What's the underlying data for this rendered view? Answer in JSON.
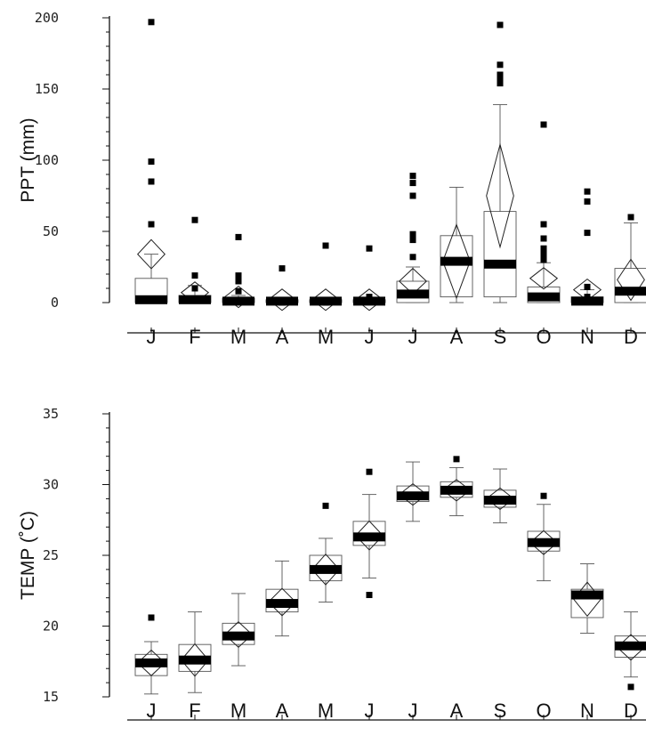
{
  "chart_data": [
    {
      "type": "box",
      "ylabel": "PPT (mm)",
      "ylim": [
        0,
        200
      ],
      "yticks": [
        0,
        50,
        100,
        150,
        200
      ],
      "categories": [
        "J",
        "F",
        "M",
        "A",
        "M",
        "J",
        "J",
        "A",
        "S",
        "O",
        "N",
        "D"
      ],
      "grid": false,
      "boxes": [
        {
          "q1": 0,
          "median": 2,
          "q3": 17,
          "lo": 0,
          "hi": 34,
          "mean": 34,
          "outliers": [
            197,
            99,
            85,
            55
          ]
        },
        {
          "q1": 0,
          "median": 2,
          "q3": 5,
          "lo": 0,
          "hi": 12,
          "mean": 7,
          "outliers": [
            58,
            19,
            10
          ]
        },
        {
          "q1": 0,
          "median": 1,
          "q3": 3,
          "lo": 0,
          "hi": 5,
          "mean": 4,
          "outliers": [
            46,
            19,
            15,
            8
          ]
        },
        {
          "q1": 0,
          "median": 1,
          "q3": 2,
          "lo": 0,
          "hi": 2,
          "mean": 2,
          "outliers": [
            24,
            0
          ]
        },
        {
          "q1": 0,
          "median": 1,
          "q3": 2,
          "lo": 0,
          "hi": 3,
          "mean": 2,
          "outliers": [
            40,
            0
          ]
        },
        {
          "q1": 0,
          "median": 1,
          "q3": 2,
          "lo": 0,
          "hi": 3,
          "mean": 2,
          "outliers": [
            38,
            4
          ]
        },
        {
          "q1": 0,
          "median": 6,
          "q3": 15,
          "lo": 0,
          "hi": 25,
          "mean": 15,
          "outliers": [
            89,
            84,
            75,
            48,
            44,
            32
          ]
        },
        {
          "q1": 4,
          "median": 29,
          "q3": 47,
          "lo": 0,
          "hi": 81,
          "mean": 29,
          "outliers": []
        },
        {
          "q1": 4,
          "median": 27,
          "q3": 64,
          "lo": 0,
          "hi": 139,
          "mean": 75,
          "outliers": [
            195,
            167,
            160,
            157,
            154
          ]
        },
        {
          "q1": 0,
          "median": 4,
          "q3": 11,
          "lo": 0,
          "hi": 28,
          "mean": 17,
          "outliers": [
            125,
            55,
            45,
            38,
            34,
            30
          ]
        },
        {
          "q1": 0,
          "median": 1,
          "q3": 4,
          "lo": 0,
          "hi": 9,
          "mean": 9,
          "outliers": [
            78,
            71,
            49,
            11,
            4
          ]
        },
        {
          "q1": 0,
          "median": 8,
          "q3": 24,
          "lo": 0,
          "hi": 56,
          "mean": 16,
          "outliers": [
            60
          ]
        }
      ]
    },
    {
      "type": "box",
      "ylabel": "TEMP (˚C)",
      "ylim": [
        15,
        35
      ],
      "yticks": [
        15,
        20,
        25,
        30,
        35
      ],
      "categories": [
        "J",
        "F",
        "M",
        "A",
        "M",
        "J",
        "J",
        "A",
        "S",
        "O",
        "N",
        "D"
      ],
      "grid": false,
      "boxes": [
        {
          "q1": 16.5,
          "median": 17.4,
          "q3": 18.0,
          "lo": 15.2,
          "hi": 18.9,
          "mean": 17.4,
          "outliers": [
            20.6
          ]
        },
        {
          "q1": 16.8,
          "median": 17.6,
          "q3": 18.7,
          "lo": 15.3,
          "hi": 21.0,
          "mean": 17.6,
          "outliers": []
        },
        {
          "q1": 18.7,
          "median": 19.3,
          "q3": 20.2,
          "lo": 17.2,
          "hi": 22.3,
          "mean": 19.4,
          "outliers": []
        },
        {
          "q1": 21.0,
          "median": 21.6,
          "q3": 22.6,
          "lo": 19.3,
          "hi": 24.6,
          "mean": 21.7,
          "outliers": []
        },
        {
          "q1": 23.2,
          "median": 24.0,
          "q3": 25.0,
          "lo": 21.7,
          "hi": 26.2,
          "mean": 24.0,
          "outliers": [
            28.5
          ]
        },
        {
          "q1": 25.7,
          "median": 26.3,
          "q3": 27.4,
          "lo": 23.4,
          "hi": 29.3,
          "mean": 26.4,
          "outliers": [
            30.9,
            22.2
          ]
        },
        {
          "q1": 28.8,
          "median": 29.2,
          "q3": 29.9,
          "lo": 27.4,
          "hi": 31.6,
          "mean": 29.3,
          "outliers": []
        },
        {
          "q1": 29.1,
          "median": 29.6,
          "q3": 30.2,
          "lo": 27.8,
          "hi": 31.2,
          "mean": 29.6,
          "outliers": [
            31.8
          ]
        },
        {
          "q1": 28.4,
          "median": 28.9,
          "q3": 29.6,
          "lo": 27.3,
          "hi": 31.1,
          "mean": 29.0,
          "outliers": []
        },
        {
          "q1": 25.3,
          "median": 25.9,
          "q3": 26.7,
          "lo": 23.2,
          "hi": 28.6,
          "mean": 25.9,
          "outliers": [
            29.2
          ]
        },
        {
          "q1": 20.6,
          "median": 22.2,
          "q3": 22.6,
          "lo": 19.5,
          "hi": 24.4,
          "mean": 21.9,
          "outliers": []
        },
        {
          "q1": 17.8,
          "median": 18.6,
          "q3": 19.3,
          "lo": 16.4,
          "hi": 21.0,
          "mean": 18.5,
          "outliers": [
            15.7
          ]
        }
      ]
    }
  ]
}
